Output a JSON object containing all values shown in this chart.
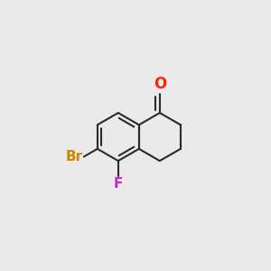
{
  "bg_color": "#eaeaea",
  "bond_color": "#2a2a2a",
  "o_color": "#ff2200",
  "br_color": "#cc8800",
  "f_color": "#cc22cc",
  "bond_lw": 1.5,
  "inner_lw": 1.5,
  "r": 0.115,
  "cx_r": 0.6,
  "cy_r": 0.5,
  "o_label": "O",
  "br_label": "Br",
  "f_label": "F",
  "o_fontsize": 12,
  "br_fontsize": 11,
  "f_fontsize": 11
}
